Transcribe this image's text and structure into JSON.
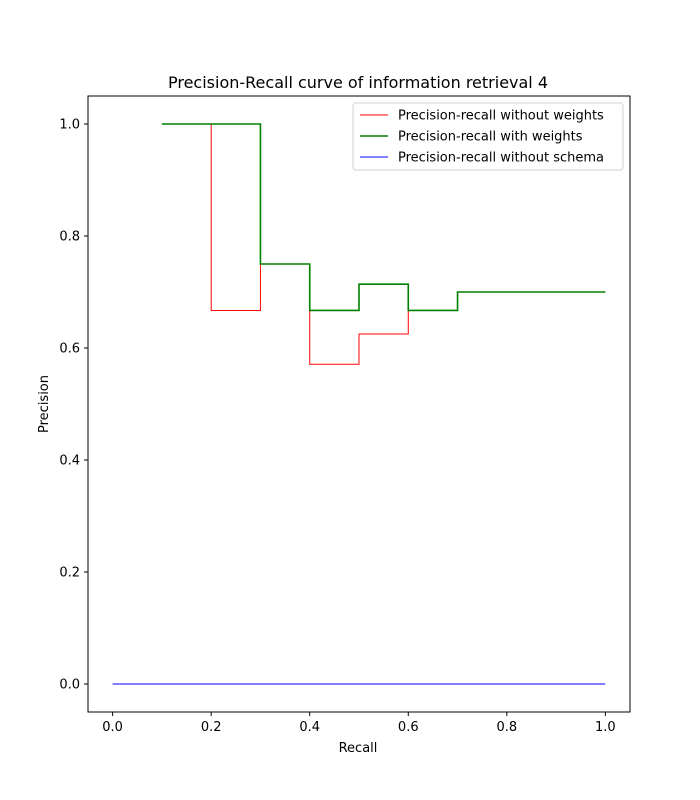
{
  "chart_data": {
    "type": "line",
    "title": "Precision-Recall curve of information retrieval 4",
    "xlabel": "Recall",
    "ylabel": "Precision",
    "xlim": [
      -0.05,
      1.05
    ],
    "ylim": [
      -0.05,
      1.05
    ],
    "xticks": [
      "0.0",
      "0.2",
      "0.4",
      "0.6",
      "0.8",
      "1.0"
    ],
    "yticks": [
      "0.0",
      "0.2",
      "0.4",
      "0.6",
      "0.8",
      "1.0"
    ],
    "grid": false,
    "legend_position": "top-right",
    "series": [
      {
        "name": "Precision-recall without weights",
        "color": "#ff0000",
        "step": "post",
        "x": [
          0.1,
          0.2,
          0.3,
          0.4,
          0.5,
          0.6,
          0.7,
          1.0
        ],
        "y": [
          1.0,
          0.667,
          0.75,
          0.571,
          0.625,
          0.667,
          0.7,
          0.7
        ]
      },
      {
        "name": "Precision-recall with weights",
        "color": "#008000",
        "step": "post",
        "x": [
          0.1,
          0.2,
          0.3,
          0.4,
          0.5,
          0.6,
          0.7,
          1.0
        ],
        "y": [
          1.0,
          1.0,
          0.75,
          0.667,
          0.714,
          0.667,
          0.7,
          0.7
        ]
      },
      {
        "name": "Precision-recall without schema",
        "color": "#0000ff",
        "step": "post",
        "x": [
          0.0,
          1.0
        ],
        "y": [
          0.0,
          0.0
        ]
      }
    ]
  }
}
